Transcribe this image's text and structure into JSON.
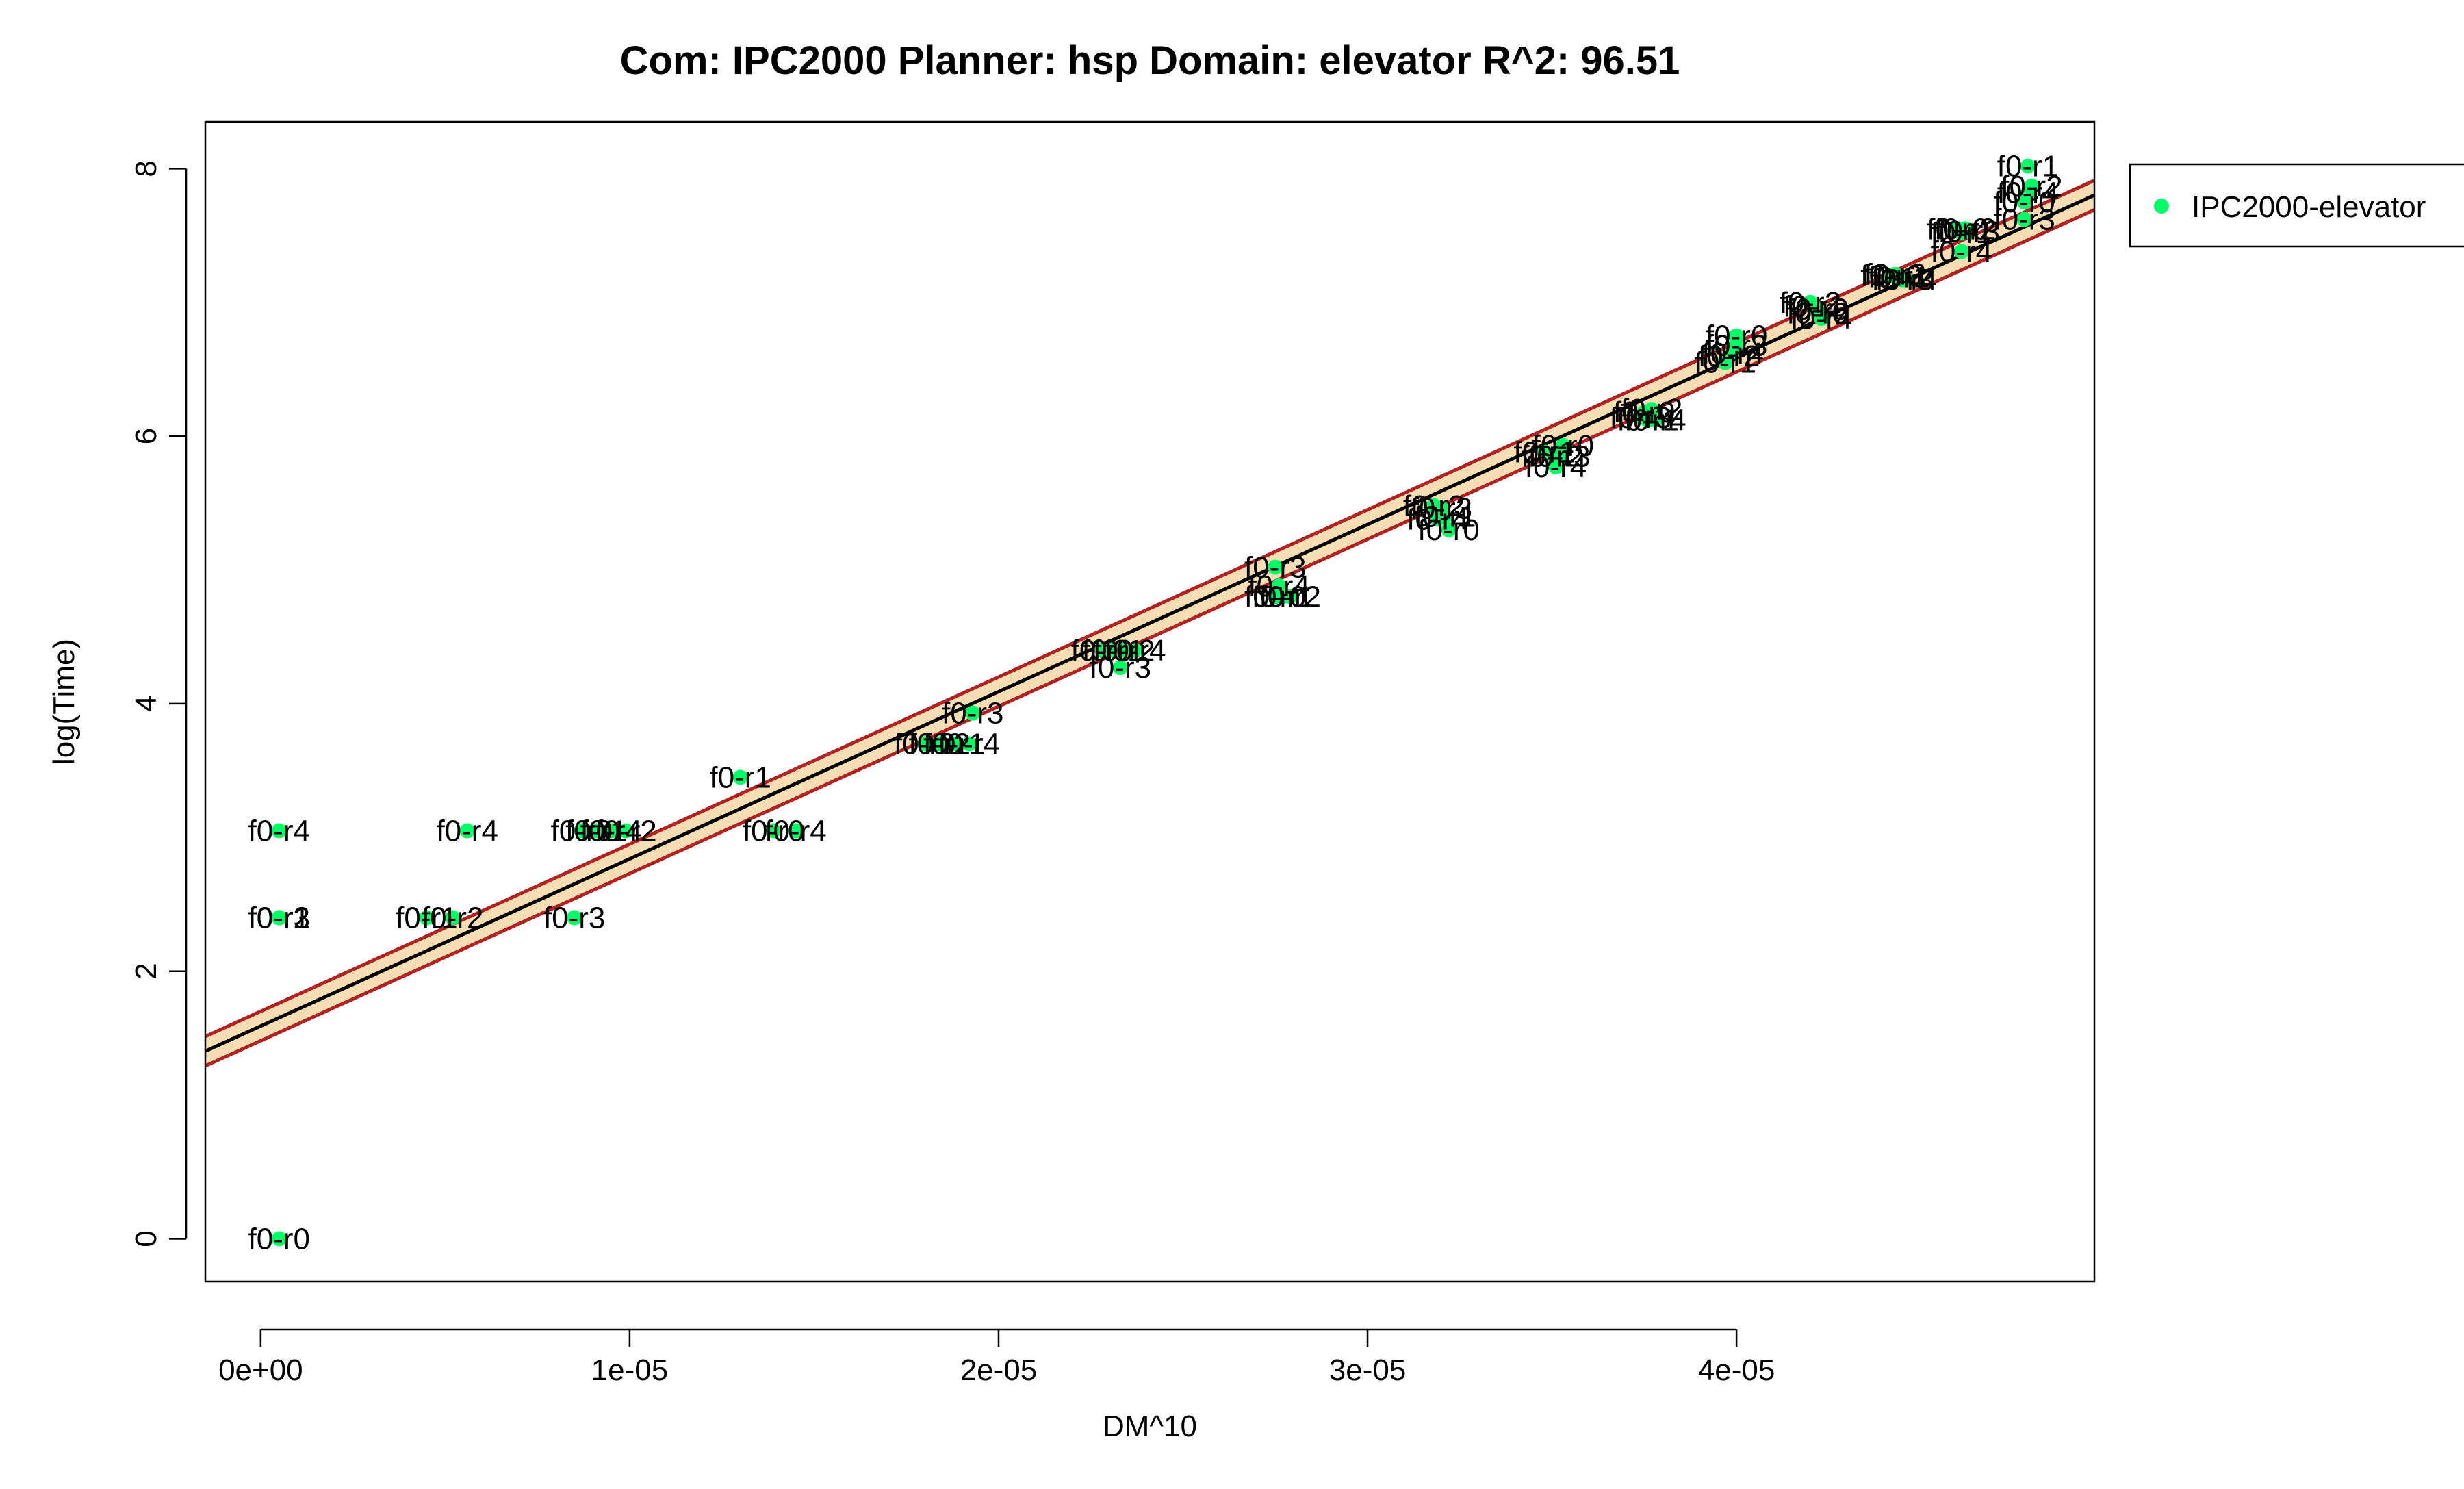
{
  "chart_data": {
    "type": "scatter",
    "title": "Com: IPC2000 Planner: hsp Domain: elevator R^2: 96.51",
    "xlabel": "DM^10",
    "ylabel": "log(Time)",
    "xlim": [
      -1.5e-06,
      4.97e-05
    ],
    "ylim": [
      -0.32,
      8.35
    ],
    "x_ticks": [
      0,
      1e-05,
      2e-05,
      3e-05,
      4e-05
    ],
    "x_tick_labels": [
      "0e+00",
      "1e-05",
      "2e-05",
      "3e-05",
      "4e-05"
    ],
    "y_ticks": [
      0,
      2,
      4,
      6,
      8
    ],
    "y_tick_labels": [
      "0",
      "2",
      "4",
      "6",
      "8"
    ],
    "grid": false,
    "legend_position": "outside-top-right",
    "colors": {
      "points": "#00FF66",
      "fit_line": "#000000",
      "band_fill": "#F5DEB3",
      "band_edge": "#B22222"
    },
    "fit": {
      "intercept": 1.59,
      "slope": 125000,
      "band_halfwidth": 0.11
    },
    "series": [
      {
        "name": "IPC2000-elevator",
        "points": [
          {
            "x": 5e-07,
            "y": 0.0,
            "label": "f0-r0"
          },
          {
            "x": 5e-07,
            "y": 2.4,
            "label": "f0-r1"
          },
          {
            "x": 5e-07,
            "y": 2.4,
            "label": "f0-r2"
          },
          {
            "x": 5e-07,
            "y": 2.4,
            "label": "f0-r3"
          },
          {
            "x": 5e-07,
            "y": 3.05,
            "label": "f0-r4"
          },
          {
            "x": 4.5e-06,
            "y": 2.4,
            "label": "f0-r1"
          },
          {
            "x": 5.2e-06,
            "y": 2.4,
            "label": "f0-r2"
          },
          {
            "x": 5.6e-06,
            "y": 3.05,
            "label": "f0-r4"
          },
          {
            "x": 8.5e-06,
            "y": 2.4,
            "label": "f0-r3"
          },
          {
            "x": 8.7e-06,
            "y": 3.05,
            "label": "f0-r0"
          },
          {
            "x": 9.1e-06,
            "y": 3.05,
            "label": "f0-r1"
          },
          {
            "x": 9.5e-06,
            "y": 3.05,
            "label": "f0-r4"
          },
          {
            "x": 9.9e-06,
            "y": 3.05,
            "label": "f0-r2"
          },
          {
            "x": 1.3e-05,
            "y": 3.45,
            "label": "f0-r1"
          },
          {
            "x": 1.39e-05,
            "y": 3.05,
            "label": "f0-r0"
          },
          {
            "x": 1.45e-05,
            "y": 3.05,
            "label": "f0-r4"
          },
          {
            "x": 1.8e-05,
            "y": 3.7,
            "label": "f0-r0"
          },
          {
            "x": 1.84e-05,
            "y": 3.7,
            "label": "f0-r2"
          },
          {
            "x": 1.88e-05,
            "y": 3.7,
            "label": "f0-r1"
          },
          {
            "x": 1.92e-05,
            "y": 3.7,
            "label": "f0-r4"
          },
          {
            "x": 1.93e-05,
            "y": 3.93,
            "label": "f0-r3"
          },
          {
            "x": 2.28e-05,
            "y": 4.4,
            "label": "f0-r0"
          },
          {
            "x": 2.31e-05,
            "y": 4.4,
            "label": "f0-r1"
          },
          {
            "x": 2.34e-05,
            "y": 4.4,
            "label": "f0-r2"
          },
          {
            "x": 2.37e-05,
            "y": 4.4,
            "label": "f0-r4"
          },
          {
            "x": 2.33e-05,
            "y": 4.27,
            "label": "f0-r3"
          },
          {
            "x": 2.75e-05,
            "y": 5.02,
            "label": "f0-r3"
          },
          {
            "x": 2.76e-05,
            "y": 4.88,
            "label": "f0-r4"
          },
          {
            "x": 2.75e-05,
            "y": 4.8,
            "label": "f0-r0"
          },
          {
            "x": 2.77e-05,
            "y": 4.8,
            "label": "f0-r1"
          },
          {
            "x": 2.79e-05,
            "y": 4.8,
            "label": "f0-r2"
          },
          {
            "x": 3.18e-05,
            "y": 5.48,
            "label": "f0-r2"
          },
          {
            "x": 3.2e-05,
            "y": 5.46,
            "label": "f0-r3"
          },
          {
            "x": 3.19e-05,
            "y": 5.38,
            "label": "f0-r4"
          },
          {
            "x": 3.21e-05,
            "y": 5.4,
            "label": "f0-r1"
          },
          {
            "x": 3.22e-05,
            "y": 5.3,
            "label": "f0-r0"
          },
          {
            "x": 3.48e-05,
            "y": 5.88,
            "label": "f0-r1"
          },
          {
            "x": 3.53e-05,
            "y": 5.93,
            "label": "f0-r0"
          },
          {
            "x": 3.52e-05,
            "y": 5.85,
            "label": "f0-r3"
          },
          {
            "x": 3.5e-05,
            "y": 5.85,
            "label": "f0-r2"
          },
          {
            "x": 3.51e-05,
            "y": 5.77,
            "label": "f0-r4"
          },
          {
            "x": 3.75e-05,
            "y": 6.18,
            "label": "f0-r0"
          },
          {
            "x": 3.77e-05,
            "y": 6.2,
            "label": "f0-r2"
          },
          {
            "x": 3.74e-05,
            "y": 6.14,
            "label": "f0-r3"
          },
          {
            "x": 3.76e-05,
            "y": 6.12,
            "label": "f0-r1"
          },
          {
            "x": 3.78e-05,
            "y": 6.12,
            "label": "f0-r4"
          },
          {
            "x": 3.97e-05,
            "y": 6.55,
            "label": "f0-r1"
          },
          {
            "x": 3.98e-05,
            "y": 6.6,
            "label": "f0-r2"
          },
          {
            "x": 4e-05,
            "y": 6.68,
            "label": "f0-r3"
          },
          {
            "x": 3.99e-05,
            "y": 6.62,
            "label": "f0-r4"
          },
          {
            "x": 4e-05,
            "y": 6.75,
            "label": "f0-r0"
          },
          {
            "x": 4.2e-05,
            "y": 7.0,
            "label": "f0-r2"
          },
          {
            "x": 4.21e-05,
            "y": 6.97,
            "label": "f0-r1"
          },
          {
            "x": 4.22e-05,
            "y": 6.95,
            "label": "f0-r3"
          },
          {
            "x": 4.23e-05,
            "y": 6.88,
            "label": "f0-r4"
          },
          {
            "x": 4.22e-05,
            "y": 6.92,
            "label": "f0-r0"
          },
          {
            "x": 4.42e-05,
            "y": 7.2,
            "label": "f0-r0"
          },
          {
            "x": 4.44e-05,
            "y": 7.19,
            "label": "f0-r1"
          },
          {
            "x": 4.43e-05,
            "y": 7.21,
            "label": "f0-r2"
          },
          {
            "x": 4.45e-05,
            "y": 7.17,
            "label": "f0-r3"
          },
          {
            "x": 4.46e-05,
            "y": 7.17,
            "label": "f0-r4"
          },
          {
            "x": 4.6e-05,
            "y": 7.55,
            "label": "f0-r0"
          },
          {
            "x": 4.61e-05,
            "y": 7.52,
            "label": "f0-r1"
          },
          {
            "x": 4.62e-05,
            "y": 7.55,
            "label": "f0-r2"
          },
          {
            "x": 4.63e-05,
            "y": 7.53,
            "label": "f0-r3"
          },
          {
            "x": 4.61e-05,
            "y": 7.38,
            "label": "f0-r4"
          },
          {
            "x": 4.79e-05,
            "y": 8.02,
            "label": "f0-r1"
          },
          {
            "x": 4.8e-05,
            "y": 7.87,
            "label": "f0-r2"
          },
          {
            "x": 4.79e-05,
            "y": 7.82,
            "label": "f0-r4"
          },
          {
            "x": 4.78e-05,
            "y": 7.62,
            "label": "f0-r3"
          },
          {
            "x": 4.78e-05,
            "y": 7.75,
            "label": "f0-r0"
          }
        ]
      }
    ]
  }
}
